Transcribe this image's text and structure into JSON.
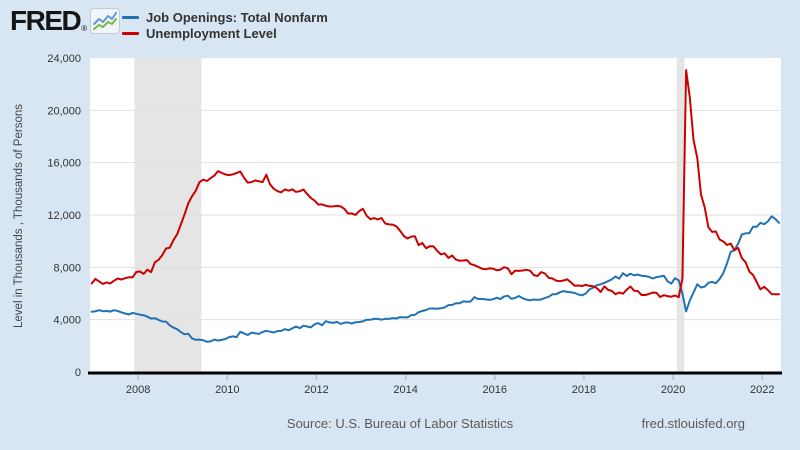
{
  "header": {
    "logo_text": "FRED",
    "logo_registered": "®"
  },
  "footer": {
    "source": "Source: U.S. Bureau of Labor Statistics",
    "site": "fred.stlouisfed.org"
  },
  "colors": {
    "page_background": "#d8e6f4",
    "plot_background": "#ffffff",
    "recession_band": "#e5e5e5",
    "gridline": "#e0e0e0",
    "axis": "#000000",
    "tick_mark": "#a9c0d8",
    "series_blue": "#2171b5",
    "series_red": "#cc0000"
  },
  "chart_data": {
    "type": "line",
    "title": "",
    "xlabel": "",
    "ylabel": "Level in Thousands , Thousands of Persons",
    "ylim": [
      0,
      24000
    ],
    "yticks": [
      0,
      4000,
      8000,
      12000,
      16000,
      20000,
      24000
    ],
    "xticks": [
      2008,
      2010,
      2012,
      2014,
      2016,
      2018,
      2020,
      2022
    ],
    "x_range_years": [
      2006.92,
      2022.42
    ],
    "grid": "horizontal-only",
    "legend_position": "top-left",
    "frequency": "monthly",
    "start": {
      "year": 2006,
      "month": 12
    },
    "recession_bands": [
      {
        "start": 2007.917,
        "end": 2009.417
      },
      {
        "start": 2020.083,
        "end": 2020.25
      }
    ],
    "series": [
      {
        "name": "Job Openings: Total Nonfarm",
        "color": "#2171b5",
        "values": [
          4600,
          4640,
          4720,
          4650,
          4660,
          4620,
          4720,
          4660,
          4560,
          4470,
          4400,
          4520,
          4450,
          4380,
          4340,
          4230,
          4080,
          4110,
          3980,
          3860,
          3850,
          3570,
          3390,
          3270,
          3050,
          2880,
          2930,
          2570,
          2460,
          2480,
          2430,
          2310,
          2340,
          2480,
          2410,
          2450,
          2530,
          2670,
          2720,
          2670,
          3070,
          2950,
          2830,
          3010,
          2960,
          2910,
          3060,
          3150,
          3080,
          3020,
          3130,
          3140,
          3280,
          3190,
          3340,
          3480,
          3350,
          3540,
          3480,
          3410,
          3650,
          3740,
          3570,
          3880,
          3790,
          3750,
          3830,
          3680,
          3760,
          3790,
          3710,
          3800,
          3820,
          3870,
          4000,
          3990,
          4060,
          4060,
          4000,
          4070,
          4060,
          4120,
          4090,
          4200,
          4170,
          4170,
          4340,
          4370,
          4570,
          4660,
          4740,
          4850,
          4850,
          4830,
          4870,
          4940,
          5110,
          5130,
          5250,
          5250,
          5400,
          5370,
          5390,
          5720,
          5580,
          5590,
          5550,
          5510,
          5560,
          5670,
          5580,
          5770,
          5830,
          5590,
          5670,
          5810,
          5630,
          5530,
          5480,
          5540,
          5510,
          5550,
          5660,
          5750,
          5940,
          5950,
          6090,
          6180,
          6120,
          6090,
          6040,
          5920,
          5860,
          6000,
          6310,
          6450,
          6640,
          6700,
          6820,
          6940,
          7080,
          7300,
          7130,
          7550,
          7340,
          7520,
          7380,
          7450,
          7350,
          7330,
          7280,
          7150,
          7250,
          7300,
          7360,
          6940,
          6750,
          7170,
          7000,
          6000,
          4630,
          5460,
          6080,
          6700,
          6460,
          6520,
          6820,
          6890,
          6790,
          7100,
          7560,
          8290,
          9190,
          9300,
          9800,
          10500,
          10600,
          10600,
          11100,
          11100,
          11400,
          11300,
          11500,
          11900,
          11700,
          11400
        ]
      },
      {
        "name": "Unemployment Level",
        "color": "#cc0000",
        "values": [
          6762,
          7116,
          6927,
          6731,
          6850,
          6766,
          6979,
          7149,
          7067,
          7170,
          7237,
          7240,
          7645,
          7685,
          7497,
          7822,
          7637,
          8395,
          8575,
          8937,
          9438,
          9494,
          10074,
          10538,
          11286,
          12058,
          12898,
          13426,
          13853,
          14499,
          14707,
          14601,
          14814,
          15009,
          15352,
          15219,
          15098,
          15046,
          15113,
          15202,
          15325,
          14849,
          14474,
          14512,
          14648,
          14579,
          14516,
          15081,
          14348,
          14013,
          13820,
          13737,
          13957,
          13855,
          13962,
          13763,
          13818,
          13948,
          13594,
          13302,
          13093,
          12797,
          12813,
          12713,
          12646,
          12660,
          12692,
          12656,
          12471,
          12115,
          12124,
          12005,
          12298,
          12471,
          11950,
          11689,
          11760,
          11654,
          11774,
          11350,
          11284,
          11264,
          11133,
          10792,
          10404,
          10202,
          10349,
          10380,
          9702,
          9859,
          9460,
          9608,
          9599,
          9262,
          8990,
          9071,
          8718,
          8903,
          8610,
          8504,
          8526,
          8555,
          8245,
          8162,
          8042,
          7904,
          7848,
          7921,
          7907,
          7784,
          7820,
          8007,
          7924,
          7473,
          7751,
          7727,
          7759,
          7809,
          7740,
          7409,
          7336,
          7635,
          7528,
          7202,
          7145,
          6983,
          6939,
          6992,
          7087,
          6841,
          6589,
          6615,
          6576,
          6668,
          6580,
          6555,
          6408,
          6114,
          6543,
          6278,
          6196,
          5948,
          6076,
          5985,
          6294,
          6535,
          6215,
          6181,
          5888,
          5888,
          5960,
          6072,
          6053,
          5731,
          5869,
          5805,
          5753,
          5850,
          5717,
          7140,
          23078,
          20985,
          17750,
          16338,
          13550,
          12580,
          11061,
          10710,
          10736,
          10130,
          9972,
          9710,
          9812,
          9316,
          9484,
          8702,
          8384,
          7674,
          7419,
          6877,
          6319,
          6513,
          6270,
          5952,
          5941,
          5950
        ]
      }
    ]
  }
}
